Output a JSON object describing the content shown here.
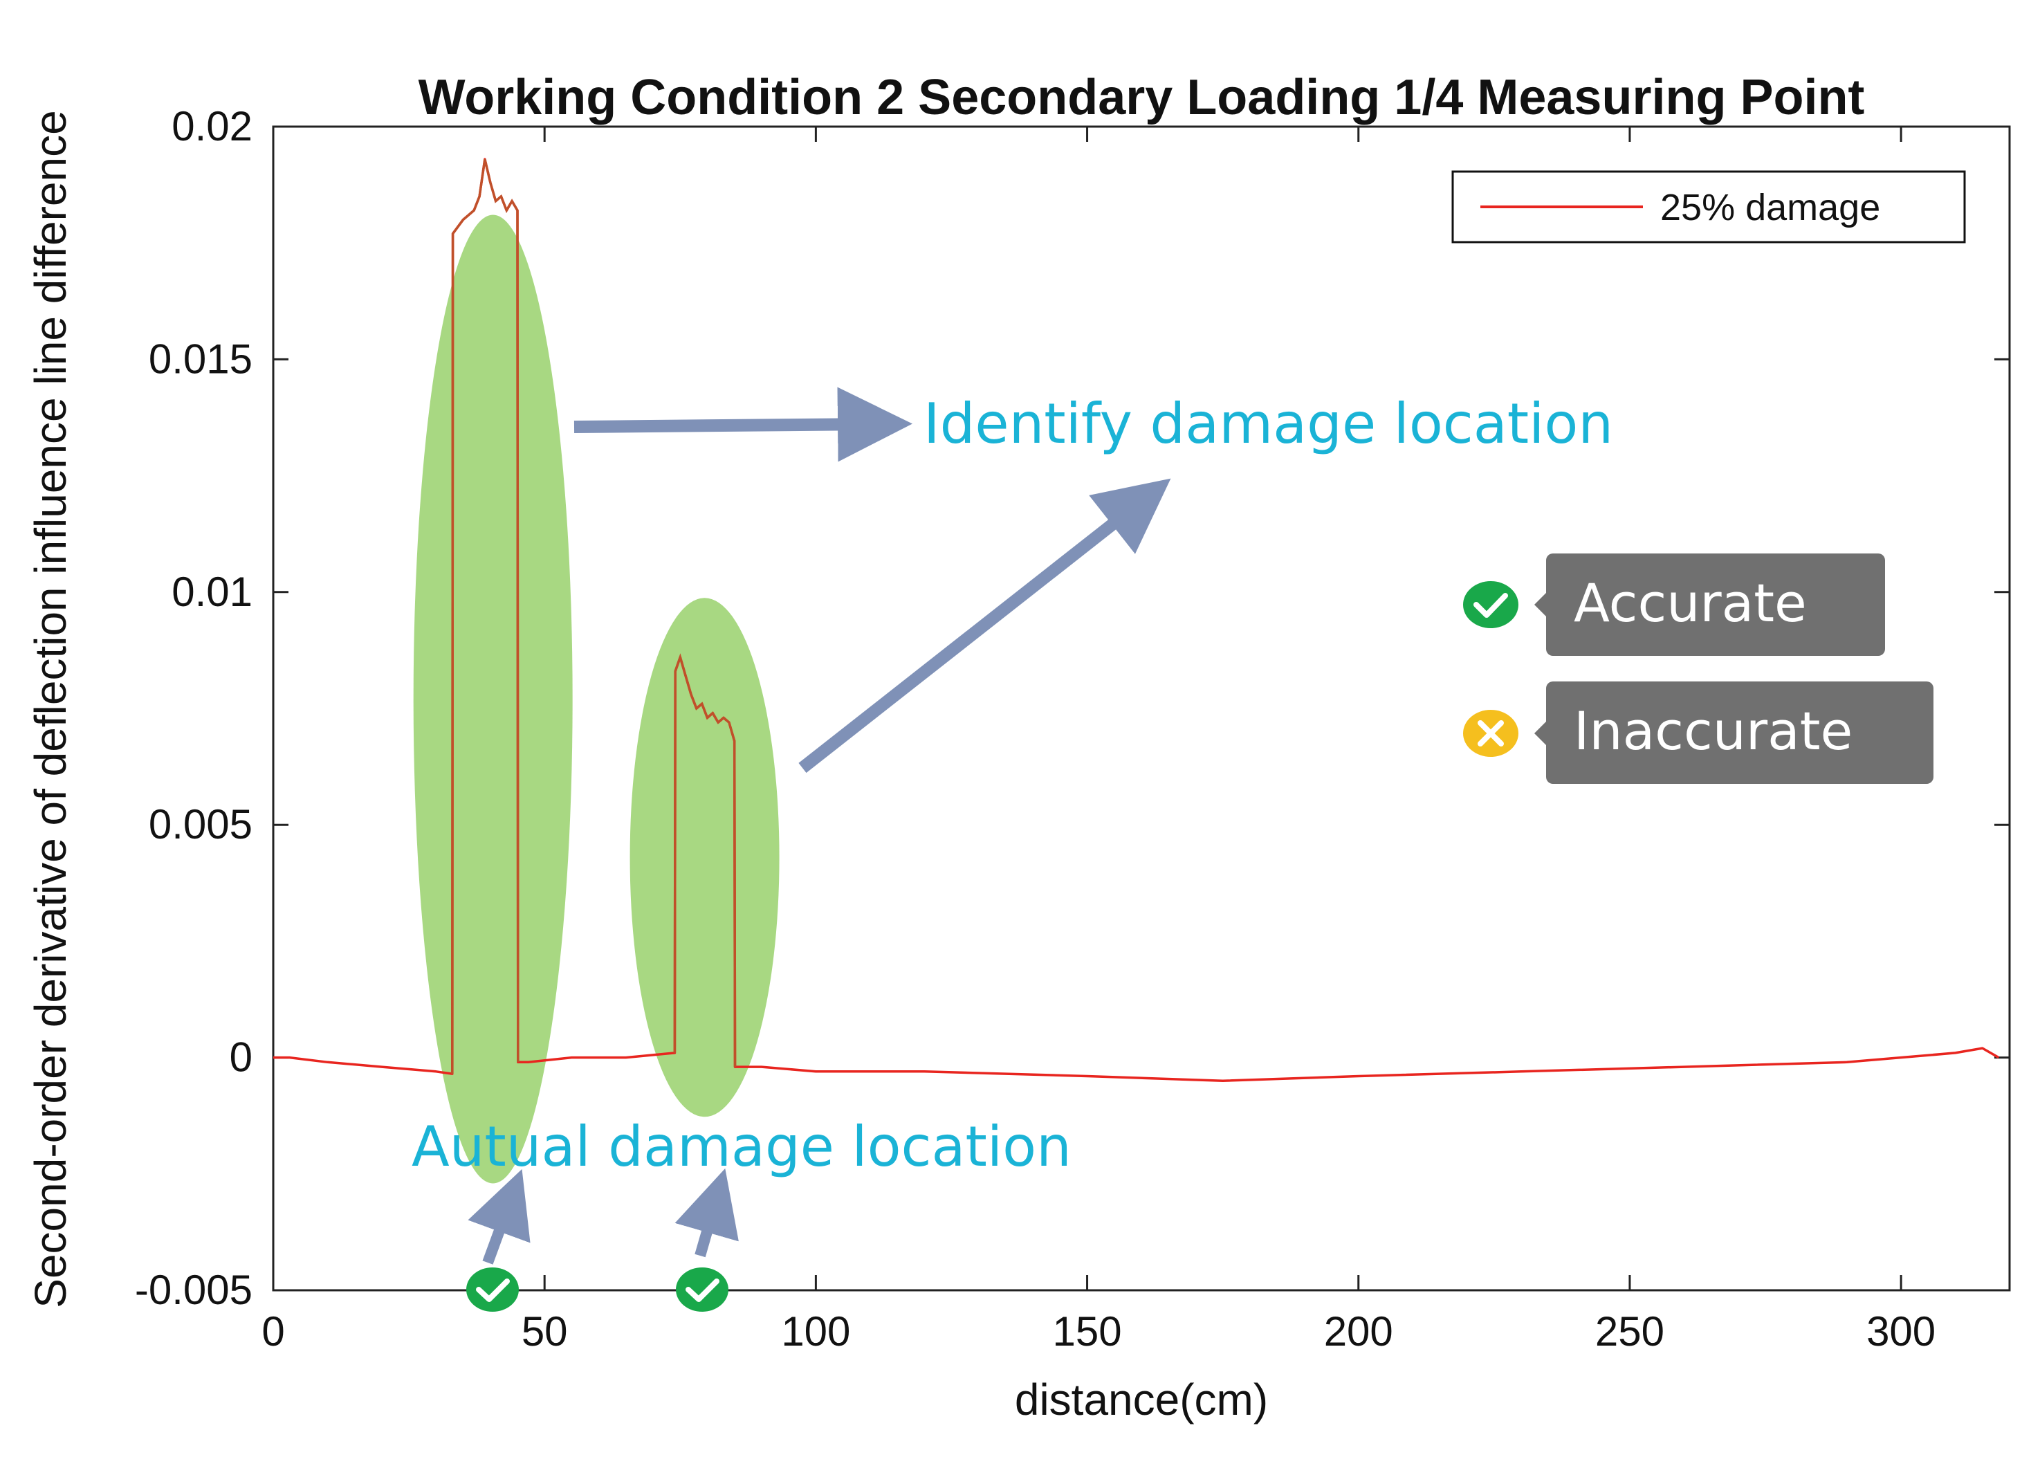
{
  "chart_data": {
    "type": "line",
    "title": "Working Condition 2 Secondary Loading 1/4 Measuring Point",
    "xlabel": "distance(cm)",
    "ylabel": "Second-order derivative of deflection influence line difference",
    "xlim": [
      0,
      320
    ],
    "ylim": [
      -0.005,
      0.02
    ],
    "xticks": [
      0,
      50,
      100,
      150,
      200,
      250,
      300
    ],
    "xtick_labels": [
      "0",
      "50",
      "100",
      "150",
      "200",
      "250",
      "300"
    ],
    "yticks": [
      -0.005,
      0,
      0.005,
      0.01,
      0.015,
      0.02
    ],
    "ytick_labels": [
      "-0.005",
      "0",
      "0.005",
      "0.01",
      "0.015",
      "0.02"
    ],
    "grid": false,
    "legend": {
      "position": "top-right",
      "entries": [
        "25% damage"
      ]
    },
    "series": [
      {
        "name": "25% damage",
        "color": "#e8251f",
        "x": [
          0,
          3,
          10,
          20,
          30,
          33,
          33.1,
          35,
          36,
          37,
          38,
          39,
          40,
          41,
          42,
          43,
          44,
          45,
          45.1,
          47,
          55,
          65,
          74,
          74.1,
          75,
          76,
          77,
          78,
          79,
          80,
          81,
          82,
          83,
          84,
          85,
          85.1,
          90,
          100,
          120,
          150,
          175,
          200,
          230,
          260,
          290,
          310,
          315,
          318
        ],
        "y": [
          0,
          0,
          -0.0001,
          -0.0002,
          -0.0003,
          -0.00035,
          0.0177,
          0.018,
          0.0181,
          0.0182,
          0.0185,
          0.0193,
          0.0188,
          0.0184,
          0.0185,
          0.0182,
          0.0184,
          0.0182,
          -0.0001,
          -0.0001,
          0.0,
          0.0,
          0.0001,
          0.0083,
          0.0086,
          0.0082,
          0.0078,
          0.0075,
          0.0076,
          0.0073,
          0.0074,
          0.0072,
          0.0073,
          0.0072,
          0.0068,
          -0.0002,
          -0.0002,
          -0.0003,
          -0.0003,
          -0.0004,
          -0.0005,
          -0.0004,
          -0.0003,
          -0.0002,
          -0.0001,
          0.0001,
          0.0002,
          0.0
        ]
      }
    ]
  },
  "annotations": {
    "identify": "Identify damage location",
    "actual": "Autual damage location",
    "accurate": "Accurate",
    "inaccurate": "Inaccurate",
    "highlight_color": "#9fd474",
    "arrow_color": "#7f91b7",
    "text_color": "#1ab3d6",
    "check_color": "#19a84a",
    "cross_color": "#f5bf1e",
    "badge_color": "#707070"
  }
}
